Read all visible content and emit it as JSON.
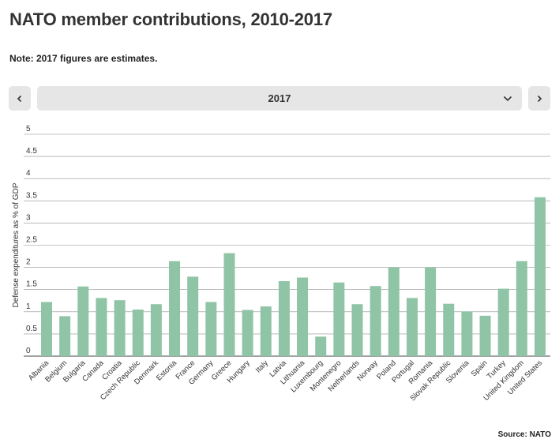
{
  "header": {
    "title": "NATO member contributions, 2010-2017",
    "note": "Note: 2017 figures are estimates."
  },
  "controls": {
    "selected_year": "2017",
    "prev_icon": "chevron-left-icon",
    "next_icon": "chevron-right-icon",
    "dropdown_icon": "chevron-down-icon"
  },
  "footer": {
    "source": "Source: NATO"
  },
  "colors": {
    "bar": "#8fc4a6",
    "grid": "#333333",
    "control_bg": "#e6e6e6"
  },
  "chart_data": {
    "type": "bar",
    "title": "",
    "xlabel": "",
    "ylabel": "Defense expenditures as % of GDP",
    "ylim": [
      0,
      5
    ],
    "yticks": [
      "0",
      "0.5",
      "1",
      "1.5",
      "2",
      "2.5",
      "3",
      "3.5",
      "4",
      "4.5",
      "5"
    ],
    "grid": true,
    "categories": [
      "Albania",
      "Belgium",
      "Bulgaria",
      "Canada",
      "Croatia",
      "Czech Republic",
      "Denmark",
      "Estonia",
      "France",
      "Germany",
      "Greece",
      "Hungary",
      "Italy",
      "Latvia",
      "Lithuania",
      "Luxembourg",
      "Montenegro",
      "Netherlands",
      "Norway",
      "Poland",
      "Portugal",
      "Romania",
      "Slovak Republic",
      "Slovenia",
      "Spain",
      "Turkey",
      "United Kingdom",
      "United States"
    ],
    "values": [
      1.22,
      0.9,
      1.57,
      1.31,
      1.26,
      1.05,
      1.17,
      2.14,
      1.79,
      1.22,
      2.32,
      1.04,
      1.12,
      1.69,
      1.77,
      0.44,
      1.66,
      1.17,
      1.58,
      2.0,
      1.31,
      2.0,
      1.18,
      1.01,
      0.91,
      1.52,
      2.14,
      3.58
    ]
  }
}
